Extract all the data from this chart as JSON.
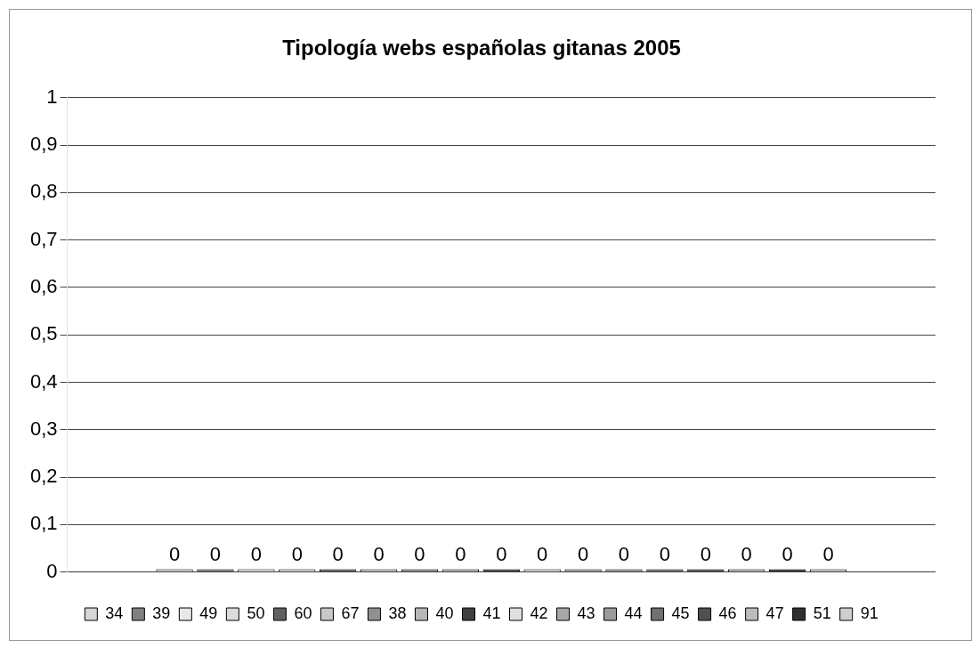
{
  "chart_data": {
    "type": "bar",
    "title": "Tipología webs españolas gitanas 2005",
    "categories": [
      null
    ],
    "series": [
      {
        "name": "34",
        "color": "#d6d6d6",
        "values": [
          0
        ]
      },
      {
        "name": "39",
        "color": "#808080",
        "values": [
          0
        ]
      },
      {
        "name": "49",
        "color": "#e8e8e8",
        "values": [
          0
        ]
      },
      {
        "name": "50",
        "color": "#dcdcdc",
        "values": [
          0
        ]
      },
      {
        "name": "60",
        "color": "#606060",
        "values": [
          0
        ]
      },
      {
        "name": "67",
        "color": "#c8c8c8",
        "values": [
          0
        ]
      },
      {
        "name": "38",
        "color": "#909090",
        "values": [
          0
        ]
      },
      {
        "name": "40",
        "color": "#b8b8b8",
        "values": [
          0
        ]
      },
      {
        "name": "41",
        "color": "#404040",
        "values": [
          0
        ]
      },
      {
        "name": "42",
        "color": "#e0e0e0",
        "values": [
          0
        ]
      },
      {
        "name": "43",
        "color": "#a8a8a8",
        "values": [
          0
        ]
      },
      {
        "name": "44",
        "color": "#9c9c9c",
        "values": [
          0
        ]
      },
      {
        "name": "45",
        "color": "#707070",
        "values": [
          0
        ]
      },
      {
        "name": "46",
        "color": "#505050",
        "values": [
          0
        ]
      },
      {
        "name": "47",
        "color": "#bcbcbc",
        "values": [
          0
        ]
      },
      {
        "name": "51",
        "color": "#303030",
        "values": [
          0
        ]
      },
      {
        "name": "91",
        "color": "#cfcfcf",
        "values": [
          0
        ]
      }
    ],
    "ylim": [
      0,
      1
    ],
    "yticks": [
      0,
      {
        "value": 0.1,
        "label": "0,1"
      },
      {
        "value": 0.2,
        "label": "0,2"
      },
      {
        "value": 0.3,
        "label": "0,3"
      },
      {
        "value": 0.4,
        "label": "0,4"
      },
      {
        "value": 0.5,
        "label": "0,5"
      },
      {
        "value": 0.6,
        "label": "0,6"
      },
      {
        "value": 0.7,
        "label": "0,7"
      },
      {
        "value": 0.8,
        "label": "0,8"
      },
      {
        "value": 0.9,
        "label": "0,9"
      },
      1
    ],
    "grid": "y",
    "legend": "bottom",
    "data_labels": true
  }
}
